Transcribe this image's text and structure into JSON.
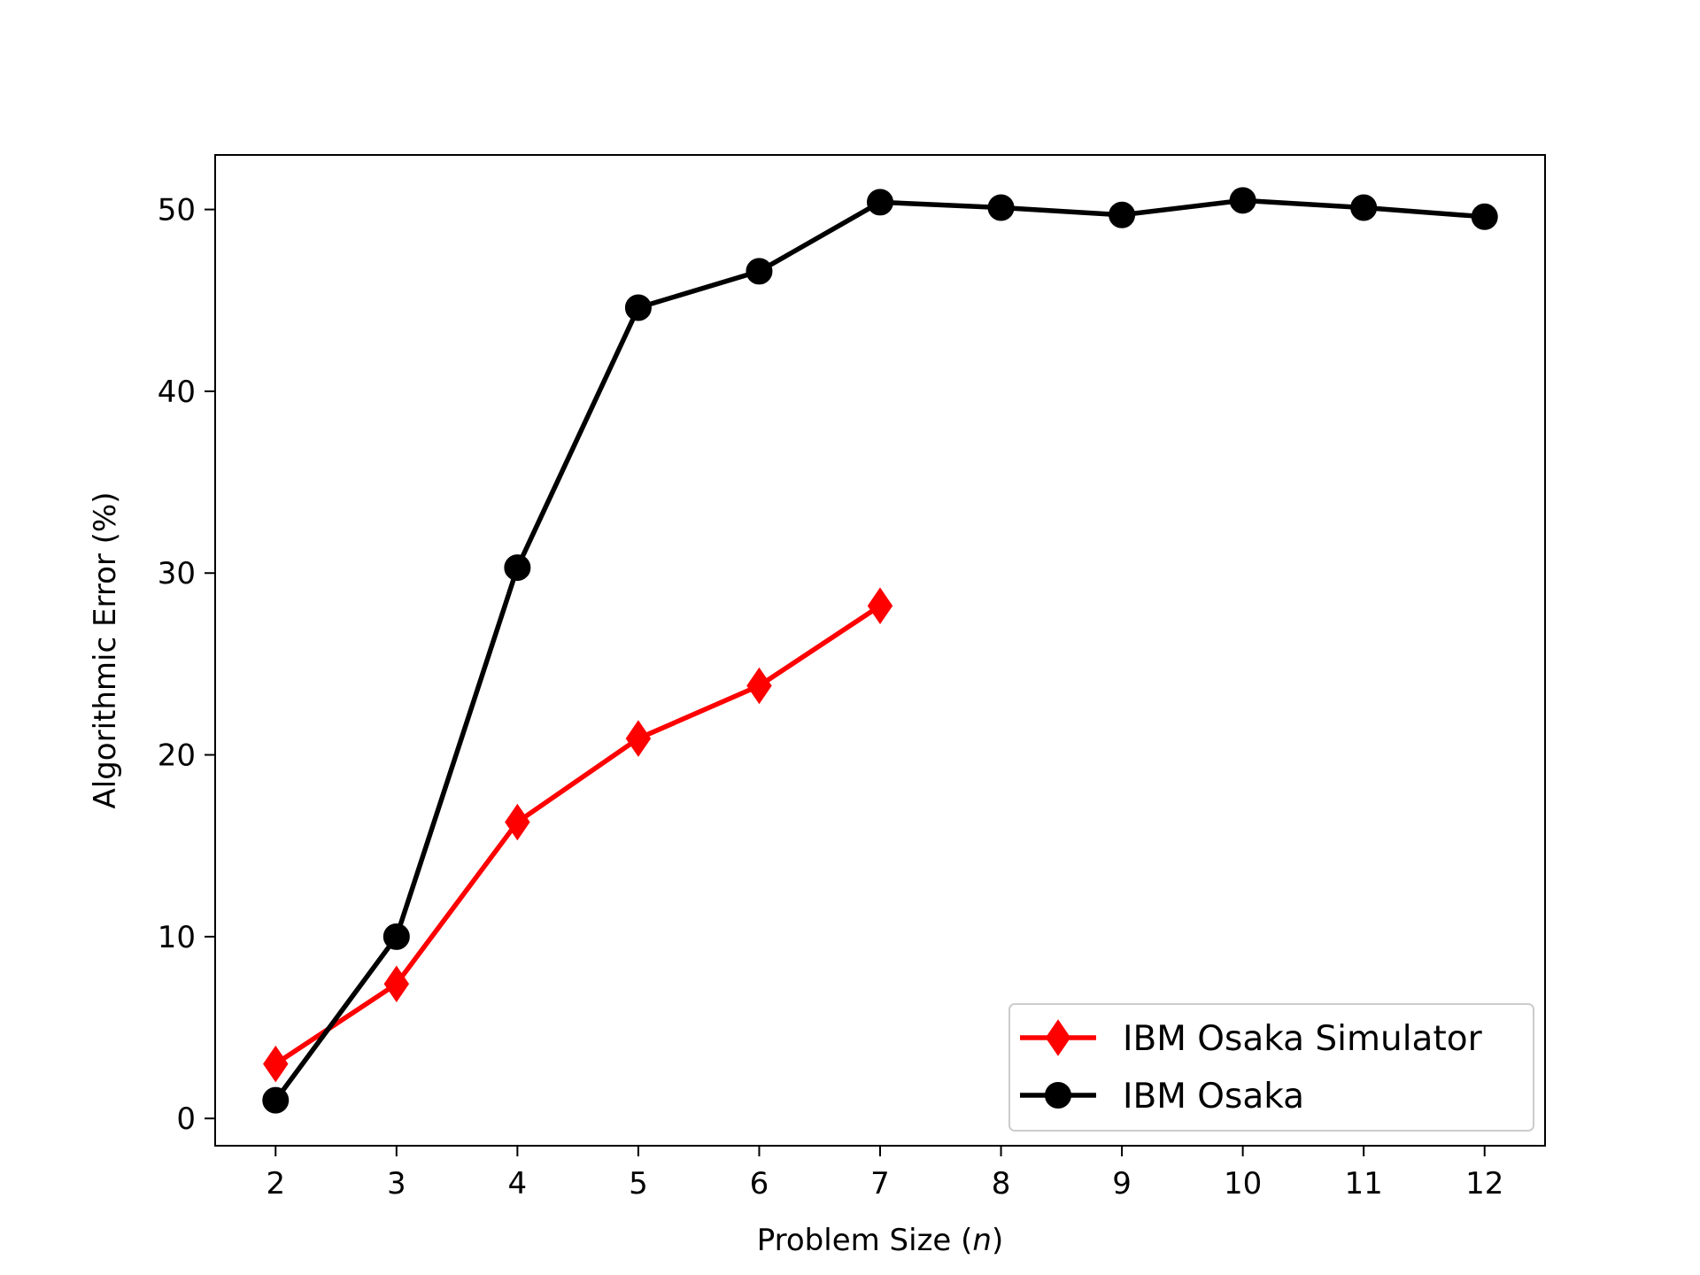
{
  "chart_data": {
    "type": "line",
    "title": "",
    "xlabel_prefix": "Problem Size (",
    "xlabel_var": "n",
    "xlabel_suffix": ")",
    "ylabel": "Algorithmic Error (%)",
    "xlim": [
      1.5,
      12.5
    ],
    "ylim": [
      -1.5,
      53
    ],
    "xticks": [
      2,
      3,
      4,
      5,
      6,
      7,
      8,
      9,
      10,
      11,
      12
    ],
    "yticks": [
      0,
      10,
      20,
      30,
      40,
      50
    ],
    "grid": false,
    "legend_position": "lower-right",
    "series": [
      {
        "name": "IBM Osaka Simulator",
        "color": "#ff0000",
        "marker": "diamond",
        "x": [
          2,
          3,
          4,
          5,
          6,
          7
        ],
        "y": [
          3.0,
          7.4,
          16.3,
          20.9,
          23.8,
          28.2
        ]
      },
      {
        "name": "IBM Osaka",
        "color": "#000000",
        "marker": "circle",
        "x": [
          2,
          3,
          4,
          5,
          6,
          7,
          8,
          9,
          10,
          11,
          12
        ],
        "y": [
          1.0,
          10.0,
          30.3,
          44.6,
          46.6,
          50.4,
          50.1,
          49.7,
          50.5,
          50.1,
          49.6
        ]
      }
    ]
  }
}
